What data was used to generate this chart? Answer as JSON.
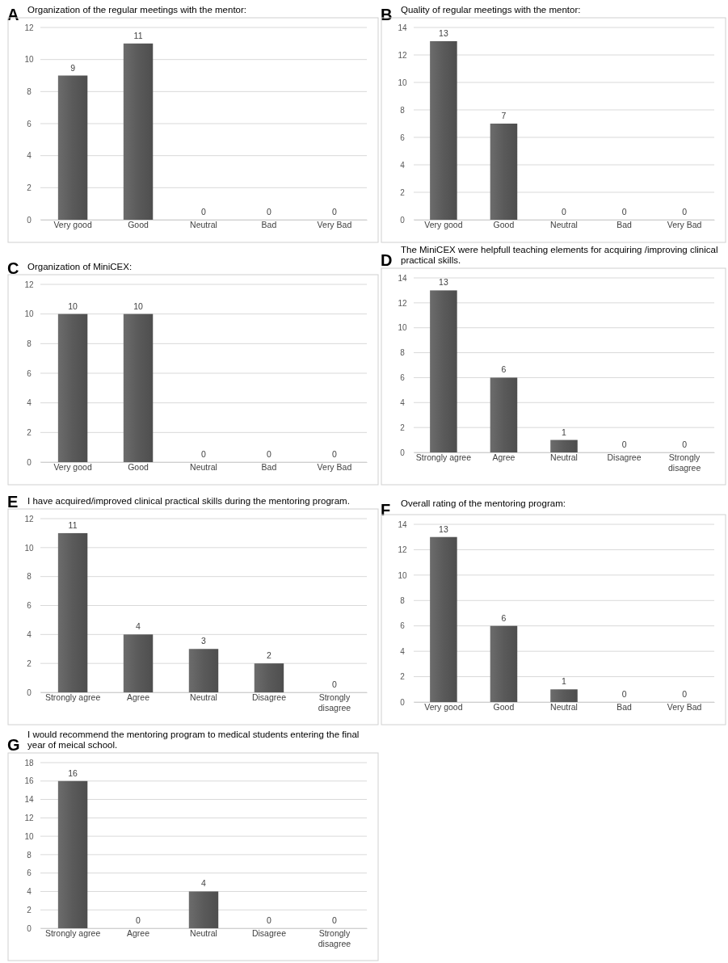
{
  "chart_data": [
    {
      "type": "bar",
      "title": "Organization of the regular meetings with the mentor:",
      "annotations": [
        "A"
      ],
      "categories": [
        "Very good",
        "Good",
        "Neutral",
        "Bad",
        "Very Bad"
      ],
      "values": [
        9,
        11,
        0,
        0,
        0
      ],
      "color": "#5a5a5a",
      "ylim": [
        0,
        12
      ],
      "yticks": [
        0,
        2,
        4,
        6,
        8,
        10,
        12
      ],
      "grid": "y",
      "data_labels": true
    },
    {
      "type": "bar",
      "title": "Quality of regular meetings with the mentor:",
      "annotations": [
        "B"
      ],
      "categories": [
        "Very good",
        "Good",
        "Neutral",
        "Bad",
        "Very Bad"
      ],
      "values": [
        13,
        7,
        0,
        0,
        0
      ],
      "color": "#5a5a5a",
      "ylim": [
        0,
        14
      ],
      "yticks": [
        0,
        2,
        4,
        6,
        8,
        10,
        12,
        14
      ],
      "grid": "y",
      "data_labels": true
    },
    {
      "type": "bar",
      "title": "Organization of MiniCEX:",
      "annotations": [
        "C"
      ],
      "categories": [
        "Very good",
        "Good",
        "Neutral",
        "Bad",
        "Very Bad"
      ],
      "values": [
        10,
        10,
        0,
        0,
        0
      ],
      "color": "#5a5a5a",
      "ylim": [
        0,
        12
      ],
      "yticks": [
        0,
        2,
        4,
        6,
        8,
        10,
        12
      ],
      "grid": "y",
      "data_labels": true
    },
    {
      "type": "bar",
      "title": "The MiniCEX were helpfull teaching elements for acquiring /improving clinical practical skills.",
      "annotations": [
        "D"
      ],
      "categories": [
        "Strongly agree",
        "Agree",
        "Neutral",
        "Disagree",
        "Strongly disagree"
      ],
      "values": [
        13,
        6,
        1,
        0,
        0
      ],
      "color": "#5a5a5a",
      "ylim": [
        0,
        14
      ],
      "yticks": [
        0,
        2,
        4,
        6,
        8,
        10,
        12,
        14
      ],
      "grid": "y",
      "data_labels": true
    },
    {
      "type": "bar",
      "title": "I have acquired/improved clinical practical skills during the mentoring program.",
      "annotations": [
        "E"
      ],
      "categories": [
        "Strongly agree",
        "Agree",
        "Neutral",
        "Disagree",
        "Strongly disagree"
      ],
      "values": [
        11,
        4,
        3,
        2,
        0
      ],
      "color": "#5a5a5a",
      "ylim": [
        0,
        12
      ],
      "yticks": [
        0,
        2,
        4,
        6,
        8,
        10,
        12
      ],
      "grid": "y",
      "data_labels": true
    },
    {
      "type": "bar",
      "title": "Overall rating of the mentoring program:",
      "annotations": [
        "F"
      ],
      "categories": [
        "Very good",
        "Good",
        "Neutral",
        "Bad",
        "Very Bad"
      ],
      "values": [
        13,
        6,
        1,
        0,
        0
      ],
      "color": "#5a5a5a",
      "ylim": [
        0,
        14
      ],
      "yticks": [
        0,
        2,
        4,
        6,
        8,
        10,
        12,
        14
      ],
      "grid": "y",
      "data_labels": true
    },
    {
      "type": "bar",
      "title": "I would recommend the mentoring program to medical students entering the final year of meical school.",
      "annotations": [
        "G"
      ],
      "categories": [
        "Strongly agree",
        "Agree",
        "Neutral",
        "Disagree",
        "Strongly disagree"
      ],
      "values": [
        16,
        0,
        4,
        0,
        0
      ],
      "color": "#5a5a5a",
      "ylim": [
        0,
        18
      ],
      "yticks": [
        0,
        2,
        4,
        6,
        8,
        10,
        12,
        14,
        16,
        18
      ],
      "grid": "y",
      "data_labels": true
    }
  ]
}
